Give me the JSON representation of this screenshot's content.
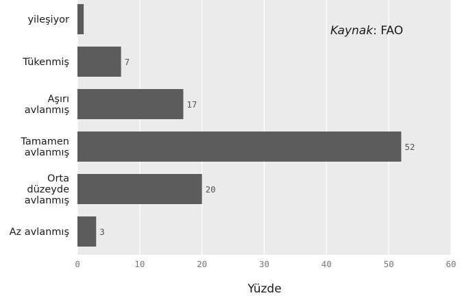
{
  "chart_data": {
    "type": "bar",
    "orientation": "horizontal",
    "categories": [
      [
        "yileşiyor"
      ],
      [
        "Tükenmiş"
      ],
      [
        "Aşırı",
        "avlanmış"
      ],
      [
        "Tamamen",
        "avlanmış"
      ],
      [
        "Orta",
        "düzeyde",
        "avlanmış"
      ],
      [
        "Az avlanmış"
      ]
    ],
    "values": [
      1,
      7,
      17,
      52,
      20,
      3
    ],
    "data_labels": [
      "",
      "7",
      "17",
      "52",
      "20",
      "3"
    ],
    "xlabel": "Yüzde",
    "xlim": [
      0,
      60
    ],
    "xticks": [
      "0",
      "10",
      "20",
      "30",
      "40",
      "50",
      "60"
    ],
    "grid": true,
    "source_prefix": "Kaynak",
    "source_suffix": ": FAO",
    "colors": {
      "bar": "#5c5c5c",
      "plot_background": "#ebebeb",
      "grid": "#ffffff"
    }
  }
}
